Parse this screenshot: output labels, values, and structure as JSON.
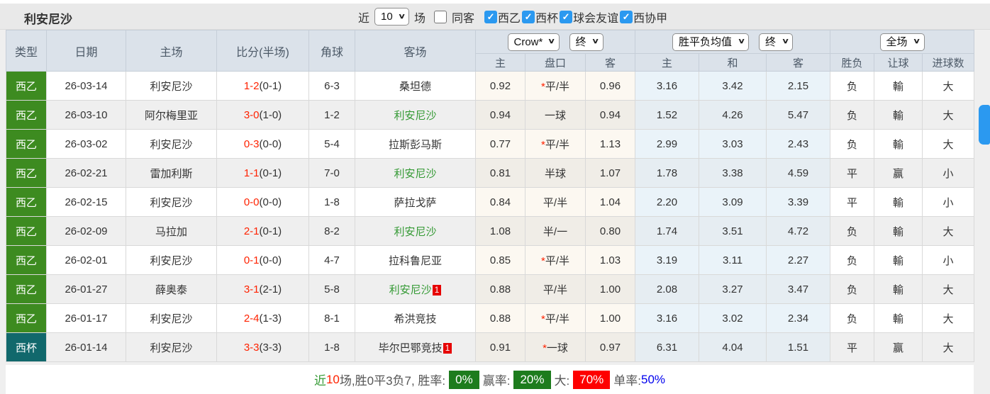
{
  "header": {
    "title": "利安尼沙",
    "near_label": "近",
    "near_value": "10",
    "games_label": "场",
    "same_venue_label": "同客",
    "same_venue_checked": false,
    "filters": [
      {
        "label": "西乙",
        "checked": true
      },
      {
        "label": "西杯",
        "checked": true
      },
      {
        "label": "球会友谊",
        "checked": true
      },
      {
        "label": "西协甲",
        "checked": true
      }
    ]
  },
  "icons": {
    "chevron_down": "∨",
    "check": "✓"
  },
  "table": {
    "columns": [
      "类型",
      "日期",
      "主场",
      "比分(半场)",
      "角球",
      "客场"
    ],
    "groups": {
      "crow": {
        "select1": "Crow*",
        "select2": "终",
        "sub": [
          "主",
          "盘口",
          "客"
        ]
      },
      "avg": {
        "select1": "胜平负均值",
        "select2": "终",
        "sub": [
          "主",
          "和",
          "客"
        ]
      },
      "full": {
        "select1": "全场",
        "sub": [
          "胜负",
          "让球",
          "进球数"
        ]
      }
    },
    "rows": [
      {
        "type": "西乙",
        "type_class": "league",
        "date": "26-03-14",
        "home": "利安尼沙",
        "home_class": "team",
        "score": "1-2",
        "half": "(0-1)",
        "corner": "6-3",
        "away": "桑坦德",
        "away_class": "",
        "away_badge": "",
        "crow_home": "0.92",
        "handicap_star": "*",
        "handicap": "平/半",
        "crow_away": "0.96",
        "avg_home": "3.16",
        "avg_draw": "3.42",
        "avg_away": "2.15",
        "wdl": "负",
        "wdl_class": "green",
        "rang": "輸",
        "rang_class": "green",
        "goals": "大",
        "goals_class": "red"
      },
      {
        "type": "西乙",
        "type_class": "league",
        "date": "26-03-10",
        "home": "阿尔梅里亚",
        "home_class": "",
        "score": "3-0",
        "half": "(1-0)",
        "corner": "1-2",
        "away": "利安尼沙",
        "away_class": "team",
        "away_badge": "",
        "crow_home": "0.94",
        "handicap_star": "",
        "handicap": "一球",
        "crow_away": "0.94",
        "avg_home": "1.52",
        "avg_draw": "4.26",
        "avg_away": "5.47",
        "wdl": "负",
        "wdl_class": "green",
        "rang": "輸",
        "rang_class": "green",
        "goals": "大",
        "goals_class": "red"
      },
      {
        "type": "西乙",
        "type_class": "league",
        "date": "26-03-02",
        "home": "利安尼沙",
        "home_class": "team",
        "score": "0-3",
        "half": "(0-0)",
        "corner": "5-4",
        "away": "拉斯彭马斯",
        "away_class": "",
        "away_badge": "",
        "crow_home": "0.77",
        "handicap_star": "*",
        "handicap": "平/半",
        "crow_away": "1.13",
        "avg_home": "2.99",
        "avg_draw": "3.03",
        "avg_away": "2.43",
        "wdl": "负",
        "wdl_class": "green",
        "rang": "輸",
        "rang_class": "green",
        "goals": "大",
        "goals_class": "red"
      },
      {
        "type": "西乙",
        "type_class": "league",
        "date": "26-02-21",
        "home": "雷加利斯",
        "home_class": "",
        "score": "1-1",
        "half": "(0-1)",
        "corner": "7-0",
        "away": "利安尼沙",
        "away_class": "team",
        "away_badge": "",
        "crow_home": "0.81",
        "handicap_star": "",
        "handicap": "半球",
        "crow_away": "1.07",
        "avg_home": "1.78",
        "avg_draw": "3.38",
        "avg_away": "4.59",
        "wdl": "平",
        "wdl_class": "blue",
        "rang": "赢",
        "rang_class": "crimson",
        "goals": "小",
        "goals_class": "green"
      },
      {
        "type": "西乙",
        "type_class": "league",
        "date": "26-02-15",
        "home": "利安尼沙",
        "home_class": "team",
        "score": "0-0",
        "half": "(0-0)",
        "corner": "1-8",
        "away": "萨拉戈萨",
        "away_class": "",
        "away_badge": "",
        "crow_home": "0.84",
        "handicap_star": "",
        "handicap": "平/半",
        "crow_away": "1.04",
        "avg_home": "2.20",
        "avg_draw": "3.09",
        "avg_away": "3.39",
        "wdl": "平",
        "wdl_class": "blue",
        "rang": "輸",
        "rang_class": "green",
        "goals": "小",
        "goals_class": "green"
      },
      {
        "type": "西乙",
        "type_class": "league",
        "date": "26-02-09",
        "home": "马拉加",
        "home_class": "",
        "score": "2-1",
        "half": "(0-1)",
        "corner": "8-2",
        "away": "利安尼沙",
        "away_class": "team",
        "away_badge": "",
        "crow_home": "1.08",
        "handicap_star": "",
        "handicap": "半/一",
        "crow_away": "0.80",
        "avg_home": "1.74",
        "avg_draw": "3.51",
        "avg_away": "4.72",
        "wdl": "负",
        "wdl_class": "green",
        "rang": "輸",
        "rang_class": "green",
        "goals": "大",
        "goals_class": "red"
      },
      {
        "type": "西乙",
        "type_class": "league",
        "date": "26-02-01",
        "home": "利安尼沙",
        "home_class": "team",
        "score": "0-1",
        "half": "(0-0)",
        "corner": "4-7",
        "away": "拉科鲁尼亚",
        "away_class": "",
        "away_badge": "",
        "crow_home": "0.85",
        "handicap_star": "*",
        "handicap": "平/半",
        "crow_away": "1.03",
        "avg_home": "3.19",
        "avg_draw": "3.11",
        "avg_away": "2.27",
        "wdl": "负",
        "wdl_class": "green",
        "rang": "輸",
        "rang_class": "green",
        "goals": "小",
        "goals_class": "green"
      },
      {
        "type": "西乙",
        "type_class": "league",
        "date": "26-01-27",
        "home": "薛奥泰",
        "home_class": "",
        "score": "3-1",
        "half": "(2-1)",
        "corner": "5-8",
        "away": "利安尼沙",
        "away_class": "team",
        "away_badge": "1",
        "crow_home": "0.88",
        "handicap_star": "",
        "handicap": "平/半",
        "crow_away": "1.00",
        "avg_home": "2.08",
        "avg_draw": "3.27",
        "avg_away": "3.47",
        "wdl": "负",
        "wdl_class": "green",
        "rang": "輸",
        "rang_class": "green",
        "goals": "大",
        "goals_class": "red"
      },
      {
        "type": "西乙",
        "type_class": "league",
        "date": "26-01-17",
        "home": "利安尼沙",
        "home_class": "team",
        "score": "2-4",
        "half": "(1-3)",
        "corner": "8-1",
        "away": "希洪竞技",
        "away_class": "",
        "away_badge": "",
        "crow_home": "0.88",
        "handicap_star": "*",
        "handicap": "平/半",
        "crow_away": "1.00",
        "avg_home": "3.16",
        "avg_draw": "3.02",
        "avg_away": "2.34",
        "wdl": "负",
        "wdl_class": "green",
        "rang": "輸",
        "rang_class": "green",
        "goals": "大",
        "goals_class": "red"
      },
      {
        "type": "西杯",
        "type_class": "cup",
        "date": "26-01-14",
        "home": "利安尼沙",
        "home_class": "team",
        "score": "3-3",
        "half": "(3-3)",
        "corner": "1-8",
        "away": "毕尔巴鄂竞技",
        "away_class": "",
        "away_badge": "1",
        "crow_home": "0.91",
        "handicap_star": "*",
        "handicap": "一球",
        "crow_away": "0.97",
        "avg_home": "6.31",
        "avg_draw": "4.04",
        "avg_away": "1.51",
        "wdl": "平",
        "wdl_class": "blue",
        "rang": "赢",
        "rang_class": "crimson",
        "goals": "大",
        "goals_class": "red"
      }
    ]
  },
  "footer": {
    "near": "近",
    "count": "10",
    "summary": "场,胜0平3负7, 胜率:",
    "win_rate": "0%",
    "win_odds_label": "赢率:",
    "win_odds_rate": "20%",
    "big_label": "大:",
    "big_rate": "70%",
    "single_label": "单率:",
    "single_rate": "50%"
  },
  "colors": {
    "league_green": "#3d8b20",
    "cup_teal": "#11686c",
    "team_green": "#339933",
    "score_red": "#ff2200",
    "draw_blue": "#3333cc",
    "win_crimson": "#e34a64",
    "big_red": "#e74c4c",
    "rate_green_bg": "#1d7c1d",
    "rate_red_bg": "#fe0000",
    "rate_blue": "#0000ee",
    "checkbox_blue": "#2b99f0",
    "header_bg": "#dbe2ea"
  }
}
